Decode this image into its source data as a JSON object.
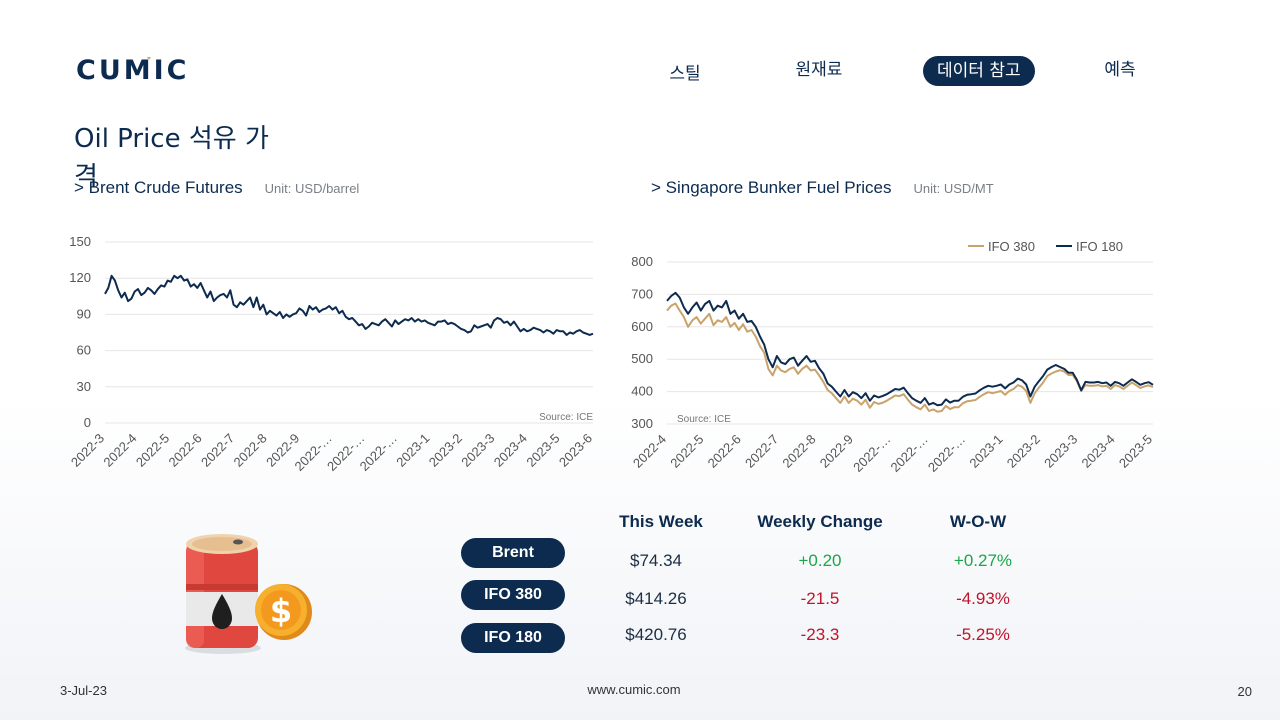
{
  "brand": {
    "logo_text": "CUMIC",
    "primary_color": "#0c2b4f",
    "accent_color": "#c9a36b"
  },
  "nav": [
    {
      "label": "스틸",
      "active": false
    },
    {
      "label": "원재료",
      "active": false
    },
    {
      "label": "데이터 참고",
      "active": true
    },
    {
      "label": "예측",
      "active": false
    }
  ],
  "page_title": "Oil Price 석유 가격",
  "left_chart": {
    "heading": "> Brent Crude Futures",
    "unit": "Unit: USD/barrel"
  },
  "right_chart": {
    "heading": "> Singapore Bunker Fuel Prices",
    "unit": "Unit: USD/MT"
  },
  "chart_data": [
    {
      "type": "line",
      "title": "> Brent Crude Futures",
      "ylabel": "Unit: USD/barrel",
      "source": "Source: ICE",
      "ylim": [
        0,
        150
      ],
      "yticks": [
        0,
        30,
        60,
        90,
        120,
        150
      ],
      "xticks": [
        "2022-3",
        "2022-4",
        "2022-5",
        "2022-6",
        "2022-7",
        "2022-8",
        "2022-9",
        "2022-…",
        "2022-…",
        "2022-…",
        "2023-1",
        "2023-2",
        "2023-3",
        "2023-4",
        "2023-5",
        "2023-6"
      ],
      "grid": true,
      "series": [
        {
          "color": "#0c2b4f",
          "values": [
            107,
            112,
            122,
            118,
            110,
            104,
            108,
            101,
            103,
            109,
            111,
            106,
            108,
            112,
            110,
            107,
            111,
            114,
            113,
            118,
            117,
            122,
            120,
            122,
            118,
            119,
            113,
            115,
            112,
            116,
            110,
            104,
            109,
            101,
            104,
            106,
            107,
            104,
            110,
            98,
            96,
            100,
            98,
            101,
            104,
            96,
            104,
            94,
            98,
            90,
            93,
            91,
            89,
            92,
            87,
            90,
            88,
            90,
            91,
            95,
            93,
            89,
            97,
            94,
            96,
            92,
            94,
            95,
            97,
            94,
            96,
            91,
            93,
            88,
            86,
            87,
            84,
            81,
            82,
            78,
            80,
            83,
            82,
            81,
            84,
            86,
            83,
            80,
            85,
            82,
            84,
            86,
            85,
            87,
            84,
            86,
            84,
            85,
            83,
            82,
            81,
            84,
            84,
            85,
            82,
            83,
            82,
            80,
            78,
            77,
            75,
            76,
            81,
            79,
            80,
            81,
            82,
            79,
            85,
            87,
            86,
            83,
            84,
            81,
            84,
            80,
            76,
            78,
            76,
            77,
            79,
            78,
            77,
            75,
            77,
            76,
            74,
            77,
            76,
            76,
            73,
            75,
            74,
            76,
            77,
            75,
            74,
            73,
            74
          ]
        }
      ]
    },
    {
      "type": "line",
      "title": "> Singapore Bunker Fuel Prices",
      "ylabel": "Unit: USD/MT",
      "source": "Source: ICE",
      "ylim": [
        300,
        800
      ],
      "yticks": [
        300,
        400,
        500,
        600,
        700,
        800
      ],
      "xticks": [
        "2022-4",
        "2022-5",
        "2022-6",
        "2022-7",
        "2022-8",
        "2022-9",
        "2022-…",
        "2022-…",
        "2022-…",
        "2023-1",
        "2023-2",
        "2023-3",
        "2023-4",
        "2023-5"
      ],
      "legend": "top-right",
      "grid": true,
      "series": [
        {
          "name": "IFO 380",
          "color": "#c9a36b",
          "values": [
            650,
            665,
            672,
            650,
            630,
            600,
            620,
            630,
            610,
            625,
            640,
            605,
            620,
            615,
            630,
            600,
            612,
            590,
            608,
            585,
            590,
            570,
            540,
            520,
            470,
            450,
            480,
            465,
            460,
            470,
            475,
            455,
            470,
            480,
            465,
            468,
            450,
            430,
            405,
            395,
            380,
            365,
            385,
            365,
            378,
            372,
            360,
            375,
            350,
            368,
            362,
            365,
            372,
            380,
            388,
            386,
            392,
            375,
            360,
            352,
            345,
            360,
            340,
            345,
            338,
            340,
            356,
            346,
            352,
            352,
            364,
            370,
            372,
            374,
            384,
            392,
            398,
            395,
            398,
            402,
            390,
            402,
            408,
            420,
            415,
            402,
            365,
            395,
            412,
            428,
            448,
            456,
            462,
            466,
            462,
            451,
            452,
            432,
            402,
            420,
            418,
            418,
            420,
            416,
            418,
            408,
            420,
            416,
            408,
            418,
            428,
            420,
            411,
            416,
            419,
            414
          ]
        },
        {
          "name": "IFO 180",
          "color": "#0c2b4f",
          "values": [
            680,
            695,
            705,
            690,
            660,
            640,
            660,
            675,
            650,
            670,
            680,
            650,
            665,
            660,
            680,
            640,
            650,
            625,
            640,
            615,
            618,
            600,
            570,
            545,
            500,
            475,
            510,
            490,
            485,
            500,
            505,
            480,
            495,
            510,
            492,
            495,
            472,
            455,
            425,
            415,
            400,
            385,
            405,
            385,
            398,
            392,
            380,
            395,
            372,
            388,
            382,
            386,
            392,
            400,
            408,
            406,
            412,
            395,
            380,
            372,
            365,
            380,
            360,
            365,
            358,
            360,
            376,
            366,
            372,
            372,
            384,
            390,
            392,
            394,
            404,
            412,
            418,
            415,
            418,
            422,
            410,
            422,
            428,
            440,
            435,
            422,
            385,
            415,
            432,
            448,
            468,
            476,
            482,
            476,
            470,
            458,
            458,
            436,
            404,
            430,
            428,
            428,
            430,
            426,
            428,
            418,
            430,
            426,
            418,
            428,
            438,
            430,
            421,
            426,
            429,
            421
          ]
        }
      ]
    }
  ],
  "table": {
    "headers": [
      "This Week",
      "Weekly Change",
      "W-O-W"
    ],
    "rows": [
      {
        "label": "Brent",
        "this_week": "$74.34",
        "weekly_change": "+0.20",
        "wow": "+0.27%",
        "direction": "up"
      },
      {
        "label": "IFO 380",
        "this_week": "$414.26",
        "weekly_change": "-21.5",
        "wow": "-4.93%",
        "direction": "down"
      },
      {
        "label": "IFO 180",
        "this_week": "$420.76",
        "weekly_change": "-23.3",
        "wow": "-5.25%",
        "direction": "down"
      }
    ]
  },
  "illustration": {
    "icon": "oil-barrel-dollar-icon",
    "coin_symbol": "$"
  },
  "footer": {
    "date": "3-Jul-23",
    "website": "www.cumic.com",
    "page_number": "20"
  }
}
